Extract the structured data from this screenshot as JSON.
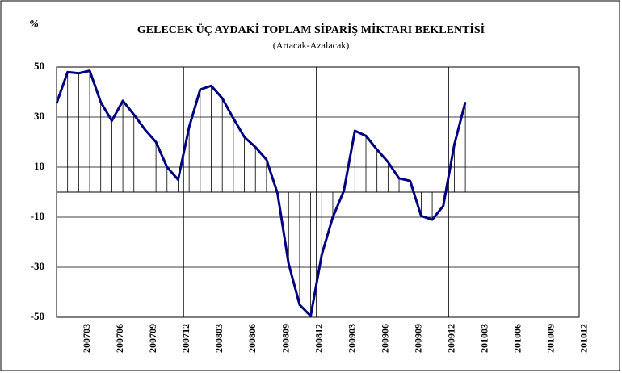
{
  "chart_data": {
    "type": "line",
    "title": "GELECEK ÜÇ AYDAKİ TOPLAM SİPARİŞ MİKTARI BEKLENTİSİ",
    "subtitle": "(Artacak-Azalacak)",
    "y_label": "%",
    "categories": [
      null,
      null,
      "200703",
      null,
      null,
      "200706",
      null,
      null,
      "200709",
      null,
      null,
      "200712",
      null,
      null,
      "200803",
      null,
      null,
      "200806",
      null,
      null,
      "200809",
      null,
      null,
      "200812",
      null,
      null,
      "200903",
      null,
      null,
      "200906",
      null,
      null,
      "200909",
      null,
      null,
      "200912",
      null,
      null,
      "201003",
      null,
      null,
      "201006",
      null,
      null,
      "201009",
      null,
      null,
      "201012"
    ],
    "series": [
      {
        "name": "Sipariş",
        "color": "#000080",
        "values": [
          35.5,
          48,
          47.5,
          48.5,
          36,
          28.5,
          36.5,
          31,
          25,
          20,
          10,
          5,
          26,
          41,
          42.5,
          37.5,
          29.5,
          22,
          18,
          13,
          -0.5,
          -28.5,
          -45,
          -49.5,
          -25,
          -10,
          0.5,
          24.5,
          22.5,
          17,
          12,
          5.5,
          4.5,
          -9.5,
          -11,
          -5.5,
          19,
          36,
          null,
          null,
          null,
          null,
          null,
          null,
          null,
          null,
          null,
          null
        ]
      }
    ],
    "ylim": [
      -50,
      50
    ],
    "yticks": [
      50,
      30,
      10,
      -10,
      -30,
      -50
    ],
    "grid": true
  }
}
